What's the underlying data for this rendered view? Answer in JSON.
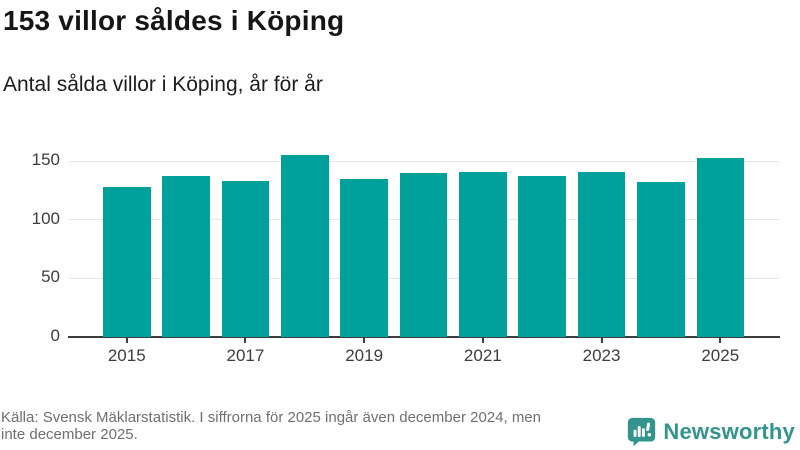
{
  "header": {
    "title": "153 villor såldes i Köping",
    "subtitle": "Antal sålda villor i Köping, år för år"
  },
  "chart_data": {
    "type": "bar",
    "title": "153 villor såldes i Köping",
    "subtitle": "Antal sålda villor i Köping, år för år",
    "categories": [
      "2015",
      "2016",
      "2017",
      "2018",
      "2019",
      "2020",
      "2021",
      "2022",
      "2023",
      "2024",
      "2025"
    ],
    "values": [
      128,
      137,
      133,
      155,
      135,
      140,
      141,
      137,
      141,
      132,
      153
    ],
    "xlabel": "",
    "ylabel": "",
    "ylim": [
      0,
      168
    ],
    "yticks": [
      0,
      50,
      100,
      150
    ],
    "xtick_labels": [
      "2015",
      "2017",
      "2019",
      "2021",
      "2023",
      "2025"
    ],
    "grid": true,
    "legend_position": "none",
    "bar_color": "#00a19a"
  },
  "footer": {
    "source_note": "Källa: Svensk Mäklarstatistik. I siffrorna för 2025 ingår även december 2024, men\ninte december 2025.",
    "brand": "Newsworthy"
  },
  "colors": {
    "bar": "#00a19a",
    "axis": "#3d3d3d",
    "gridline": "#e6e6e6",
    "brand_teal": "#33948e",
    "title_text": "#161616",
    "source_text": "#6f6f6f"
  }
}
